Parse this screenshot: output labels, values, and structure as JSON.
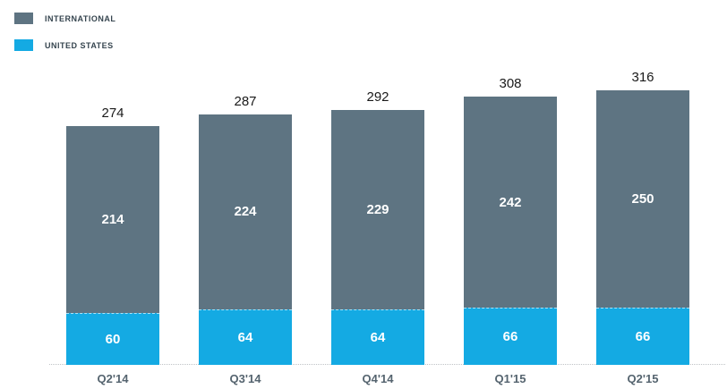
{
  "legend": {
    "items": [
      {
        "label": "INTERNATIONAL",
        "color": "#5e7482"
      },
      {
        "label": "UNITED STATES",
        "color": "#14aae3"
      }
    ]
  },
  "chart_data": {
    "type": "bar",
    "stacked": true,
    "title": "",
    "xlabel": "",
    "ylabel": "",
    "categories": [
      "Q2'14",
      "Q3'14",
      "Q4'14",
      "Q1'15",
      "Q2'15"
    ],
    "series": [
      {
        "name": "INTERNATIONAL",
        "color": "#5e7482",
        "values": [
          214,
          224,
          229,
          242,
          250
        ]
      },
      {
        "name": "UNITED STATES",
        "color": "#14aae3",
        "values": [
          60,
          64,
          64,
          66,
          66
        ]
      }
    ],
    "totals": [
      274,
      287,
      292,
      308,
      316
    ],
    "legend_position": "top-left",
    "grid": false,
    "axis_line": "dotted-baseline",
    "value_labels": "inside-segments-and-total-above"
  }
}
